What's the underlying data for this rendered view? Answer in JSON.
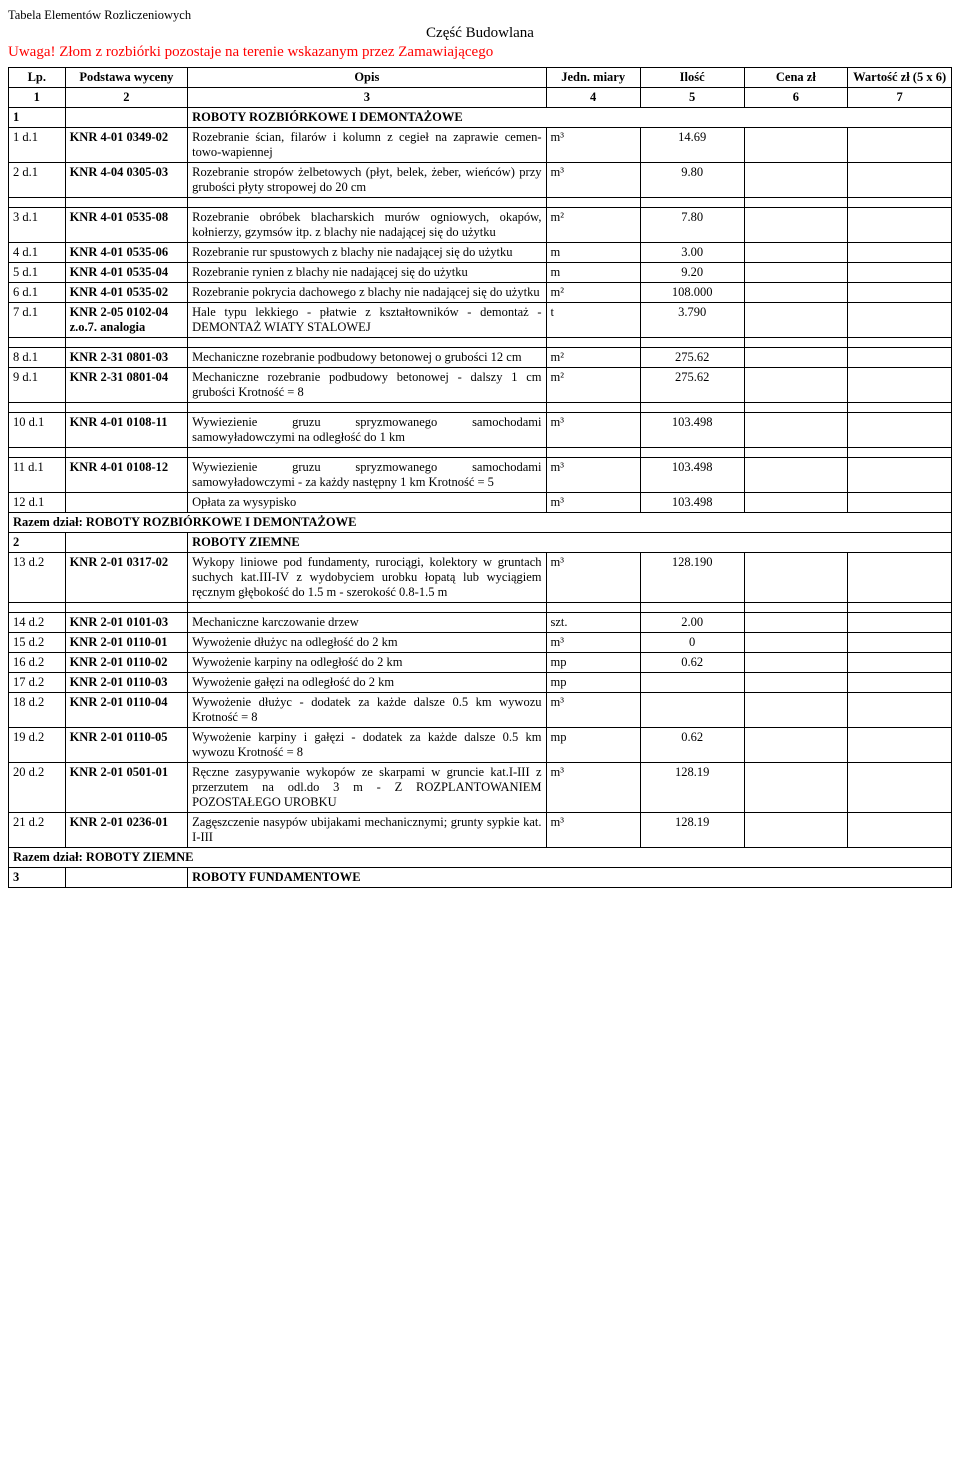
{
  "doc_title": "Tabela Elementów Rozliczeniowych",
  "section_title": "Część Budowlana",
  "warning": "Uwaga! Złom z rozbiórki pozostaje na terenie wskazanym przez Zamawiającego",
  "headers": {
    "lp": "Lp.",
    "podstawa": "Podstawa wyceny",
    "opis": "Opis",
    "jedn": "Jedn. miary",
    "ilosc": "Ilość",
    "cena": "Cena zł",
    "wartosc": "Wartość zł (5 x 6)"
  },
  "numrow": {
    "c1": "1",
    "c2": "2",
    "c3": "3",
    "c4": "4",
    "c5": "5",
    "c6": "6",
    "c7": "7"
  },
  "sections": {
    "s1": {
      "num": "1",
      "title": "ROBOTY ROZBIÓRKOWE I DEMONTAŻOWE",
      "razem": "Razem dział: ROBOTY ROZBIÓRKOWE I DEMONTAŻOWE"
    },
    "s2": {
      "num": "2",
      "title": "ROBOTY ZIEMNE",
      "razem": "Razem dział: ROBOTY ZIEMNE"
    },
    "s3": {
      "num": "3",
      "title": "ROBOTY FUNDAMENTOWE"
    }
  },
  "rows": {
    "r1": {
      "lp": "1 d.1",
      "pw": "KNR 4-01 0349-02",
      "op": "Rozebranie ścian, filarów i kolumn z cegieł na zaprawie cemen-towo-wapiennej",
      "jm": "m³",
      "il": "14.69"
    },
    "r2": {
      "lp": "2 d.1",
      "pw": "KNR 4-04 0305-03",
      "op": "Rozebranie stropów żelbetowych (płyt, belek, żeber, wieńców) przy grubości płyty stropowej do 20 cm",
      "jm": "m³",
      "il": "9.80"
    },
    "r3": {
      "lp": "3 d.1",
      "pw": "KNR 4-01 0535-08",
      "op": "Rozebranie obróbek blacharskich murów ogniowych, okapów, kołnierzy, gzymsów itp. z blachy nie nadającej się do użytku",
      "jm": "m²",
      "il": "7.80"
    },
    "r4": {
      "lp": "4 d.1",
      "pw": "KNR 4-01 0535-06",
      "op": "Rozebranie rur spustowych z blachy nie nadającej się do użytku",
      "jm": "m",
      "il": "3.00"
    },
    "r5": {
      "lp": "5 d.1",
      "pw": "KNR 4-01 0535-04",
      "op": "Rozebranie rynien z blachy nie nadającej się do użytku",
      "jm": "m",
      "il": "9.20"
    },
    "r6": {
      "lp": "6 d.1",
      "pw": "KNR 4-01 0535-02",
      "op": "Rozebranie pokrycia dachowego z blachy nie nadającej się do użytku",
      "jm": "m²",
      "il": "108.000"
    },
    "r7": {
      "lp": "7 d.1",
      "pw": "KNR 2-05 0102-04 z.o.7. analogia",
      "op": "Hale typu lekkiego - płatwie z kształtowników - demontaż -DEMONTAŻ WIATY STALOWEJ",
      "jm": "t",
      "il": "3.790"
    },
    "r8": {
      "lp": "8 d.1",
      "pw": "KNR 2-31 0801-03",
      "op": "Mechaniczne rozebranie podbudowy betonowej o grubości 12 cm",
      "jm": "m²",
      "il": "275.62"
    },
    "r9": {
      "lp": "9 d.1",
      "pw": "KNR 2-31 0801-04",
      "op": "Mechaniczne rozebranie podbudowy betonowej - dalszy 1 cm grubości Krotność = 8",
      "jm": "m²",
      "il": "275.62"
    },
    "r10": {
      "lp": "10 d.1",
      "pw": "KNR 4-01 0108-11",
      "op": "Wywiezienie gruzu spryzmowanego samochodami samowyładowczymi na odległość do 1 km",
      "jm": "m³",
      "il": "103.498"
    },
    "r11": {
      "lp": "11 d.1",
      "pw": "KNR 4-01 0108-12",
      "op": "Wywiezienie gruzu spryzmowanego samochodami samowyładowczymi - za każdy następny 1 km Krotność = 5",
      "jm": "m³",
      "il": "103.498"
    },
    "r12": {
      "lp": "12 d.1",
      "pw": "",
      "op": "Opłata za wysypisko",
      "jm": "m³",
      "il": "103.498"
    },
    "r13": {
      "lp": "13 d.2",
      "pw": "KNR 2-01 0317-02",
      "op": "Wykopy liniowe pod fundamenty, rurociągi, kolektory w gruntach suchych kat.III-IV z wydobyciem urobku łopatą lub wyciągiem ręcznym głębokość do 1.5 m - szerokość 0.8-1.5 m",
      "jm": "m³",
      "il": "128.190"
    },
    "r14": {
      "lp": "14 d.2",
      "pw": "KNR 2-01 0101-03",
      "op": "Mechaniczne karczowanie drzew",
      "jm": "szt.",
      "il": "2.00"
    },
    "r15": {
      "lp": "15 d.2",
      "pw": "KNR 2-01 0110-01",
      "op": "Wywożenie dłużyc na odległość do 2 km",
      "jm": "m³",
      "il": "0"
    },
    "r16": {
      "lp": "16 d.2",
      "pw": "KNR 2-01 0110-02",
      "op": "Wywożenie karpiny na odległość do 2 km",
      "jm": "mp",
      "il": "0.62"
    },
    "r17": {
      "lp": "17 d.2",
      "pw": "KNR 2-01 0110-03",
      "op": "Wywożenie gałęzi na odległość do 2 km",
      "jm": "mp",
      "il": ""
    },
    "r18": {
      "lp": "18 d.2",
      "pw": "KNR 2-01 0110-04",
      "op": "Wywożenie dłużyc - dodatek za każde dalsze 0.5 km wywozu Krotność = 8",
      "jm": "m³",
      "il": ""
    },
    "r19": {
      "lp": "19 d.2",
      "pw": "KNR 2-01 0110-05",
      "op": "Wywożenie karpiny i gałęzi - dodatek za każde dalsze 0.5 km wywozu Krotność = 8",
      "jm": "mp",
      "il": "0.62"
    },
    "r20": {
      "lp": "20 d.2",
      "pw": "KNR 2-01 0501-01",
      "op": "Ręczne zasypywanie wykopów ze skarpami w gruncie kat.I-III z przerzutem na odl.do 3 m - Z ROZPLANTOWANIEM POZOSTAŁEGO UROBKU",
      "jm": "m³",
      "il": "128.19"
    },
    "r21": {
      "lp": "21 d.2",
      "pw": "KNR 2-01 0236-01",
      "op": "Zagęszczenie nasypów ubijakami mechanicznymi; grunty sypkie kat. I-III",
      "jm": "m³",
      "il": "128.19"
    }
  }
}
